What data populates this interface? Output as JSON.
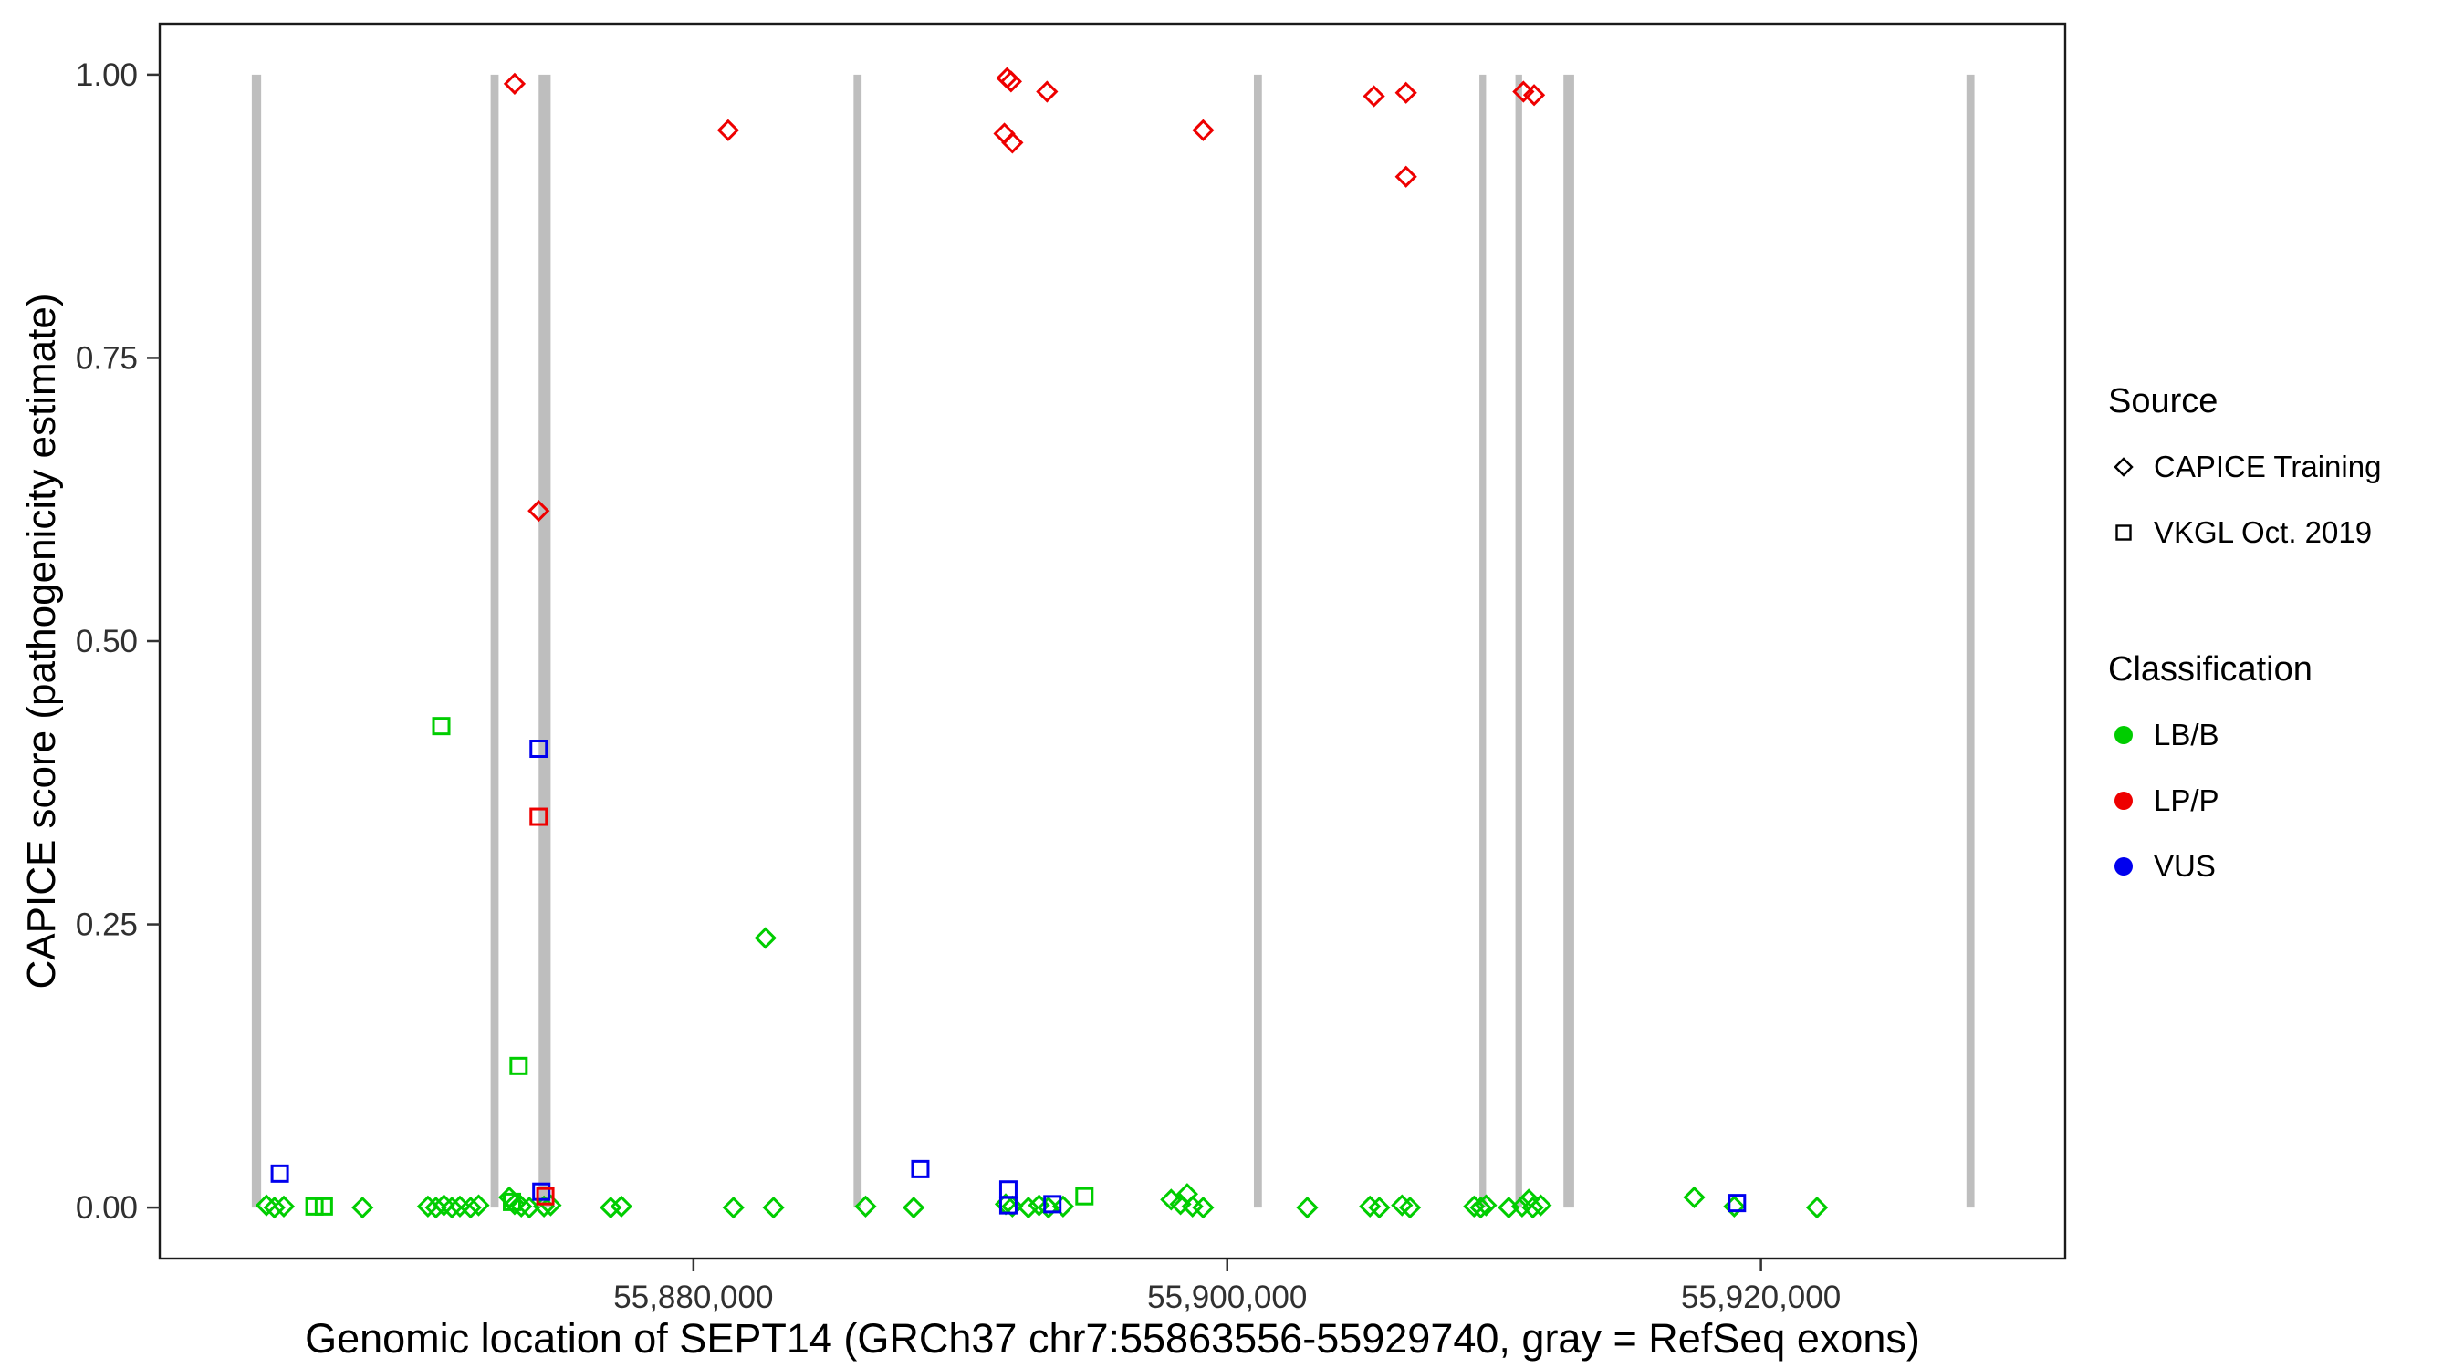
{
  "figure": {
    "background": "#FFFFFF"
  },
  "chart_data": {
    "type": "scatter",
    "title": "",
    "xlabel": "Genomic location of SEPT14 (GRCh37 chr7:55863556-55929740, gray = RefSeq exons)",
    "ylabel": "CAPICE score (pathogenicity estimate)",
    "xlim": [
      55860000,
      55931400
    ],
    "ylim": [
      -0.045,
      1.045
    ],
    "grid": false,
    "panel_border_color": "#1a1a1a",
    "tick_color": "#333333",
    "x_ticks": [
      {
        "value": 55880000,
        "label": "55,880,000"
      },
      {
        "value": 55900000,
        "label": "55,900,000"
      },
      {
        "value": 55920000,
        "label": "55,920,000"
      }
    ],
    "y_ticks": [
      {
        "value": 0.0,
        "label": "0.00"
      },
      {
        "value": 0.25,
        "label": "0.25"
      },
      {
        "value": 0.5,
        "label": "0.50"
      },
      {
        "value": 0.75,
        "label": "0.75"
      },
      {
        "value": 1.0,
        "label": "1.00"
      }
    ],
    "exon_color": "#BEBEBE",
    "exons": [
      {
        "start": 55863450,
        "end": 55863800
      },
      {
        "start": 55872400,
        "end": 55872700
      },
      {
        "start": 55874200,
        "end": 55874650
      },
      {
        "start": 55886000,
        "end": 55886300
      },
      {
        "start": 55901000,
        "end": 55901300
      },
      {
        "start": 55909450,
        "end": 55909700
      },
      {
        "start": 55910800,
        "end": 55911050
      },
      {
        "start": 55912600,
        "end": 55913000
      },
      {
        "start": 55927700,
        "end": 55928000
      }
    ],
    "series": [
      {
        "name": "CAPICE Training LB/B",
        "source": "CAPICE Training",
        "classification": "LB/B",
        "shape": "diamond",
        "color": "#00CD00",
        "points": [
          [
            55864000,
            0.002
          ],
          [
            55864300,
            0.0
          ],
          [
            55864650,
            0.001
          ],
          [
            55867600,
            0.0
          ],
          [
            55870050,
            0.001
          ],
          [
            55870350,
            0.0
          ],
          [
            55870650,
            0.002
          ],
          [
            55870950,
            0.0
          ],
          [
            55871250,
            0.001
          ],
          [
            55871650,
            0.0
          ],
          [
            55871950,
            0.002
          ],
          [
            55873100,
            0.009
          ],
          [
            55873300,
            0.003
          ],
          [
            55873550,
            0.001
          ],
          [
            55873850,
            0.0
          ],
          [
            55874400,
            0.001
          ],
          [
            55874650,
            0.002
          ],
          [
            55876900,
            0.0
          ],
          [
            55877300,
            0.001
          ],
          [
            55881500,
            0.0
          ],
          [
            55882700,
            0.238
          ],
          [
            55883000,
            0.0
          ],
          [
            55886450,
            0.001
          ],
          [
            55888250,
            0.0
          ],
          [
            55891700,
            0.003
          ],
          [
            55891950,
            0.001
          ],
          [
            55892550,
            0.0
          ],
          [
            55892950,
            0.002
          ],
          [
            55893300,
            0.0
          ],
          [
            55893850,
            0.001
          ],
          [
            55897900,
            0.007
          ],
          [
            55898250,
            0.003
          ],
          [
            55898500,
            0.012
          ],
          [
            55898700,
            0.001
          ],
          [
            55899100,
            0.0
          ],
          [
            55903000,
            0.0
          ],
          [
            55905350,
            0.001
          ],
          [
            55905700,
            0.0
          ],
          [
            55906550,
            0.002
          ],
          [
            55906850,
            0.0
          ],
          [
            55909250,
            0.001
          ],
          [
            55909500,
            0.0
          ],
          [
            55909700,
            0.002
          ],
          [
            55910550,
            0.0
          ],
          [
            55911050,
            0.001
          ],
          [
            55911300,
            0.007
          ],
          [
            55911450,
            0.0
          ],
          [
            55911750,
            0.002
          ],
          [
            55917500,
            0.009
          ],
          [
            55919000,
            0.001
          ],
          [
            55922100,
            0.0
          ]
        ]
      },
      {
        "name": "VKGL Oct. 2019 LB/B",
        "source": "VKGL Oct. 2019",
        "classification": "LB/B",
        "shape": "square",
        "color": "#00CD00",
        "points": [
          [
            55865800,
            0.001
          ],
          [
            55866150,
            0.001
          ],
          [
            55870550,
            0.425
          ],
          [
            55873200,
            0.005
          ],
          [
            55873450,
            0.125
          ],
          [
            55894650,
            0.01
          ]
        ]
      },
      {
        "name": "VKGL Oct. 2019 VUS",
        "source": "VKGL Oct. 2019",
        "classification": "VUS",
        "shape": "square",
        "color": "#0000EE",
        "points": [
          [
            55864500,
            0.03
          ],
          [
            55874200,
            0.405
          ],
          [
            55874300,
            0.014
          ],
          [
            55888500,
            0.034
          ],
          [
            55891800,
            0.016
          ],
          [
            55891800,
            0.002
          ],
          [
            55893450,
            0.003
          ],
          [
            55919100,
            0.004
          ]
        ]
      },
      {
        "name": "VKGL Oct. 2019 LP/P",
        "source": "VKGL Oct. 2019",
        "classification": "LP/P",
        "shape": "square",
        "color": "#EE0000",
        "points": [
          [
            55874200,
            0.345
          ],
          [
            55874450,
            0.01
          ]
        ]
      },
      {
        "name": "CAPICE Training LP/P",
        "source": "CAPICE Training",
        "classification": "LP/P",
        "shape": "diamond",
        "color": "#EE0000",
        "points": [
          [
            55873300,
            0.992
          ],
          [
            55874200,
            0.615
          ],
          [
            55881300,
            0.951
          ],
          [
            55891750,
            0.997
          ],
          [
            55891900,
            0.994
          ],
          [
            55891650,
            0.948
          ],
          [
            55891950,
            0.94
          ],
          [
            55893250,
            0.985
          ],
          [
            55899100,
            0.951
          ],
          [
            55905500,
            0.981
          ],
          [
            55906700,
            0.984
          ],
          [
            55906700,
            0.91
          ],
          [
            55911100,
            0.985
          ],
          [
            55911500,
            0.982
          ]
        ]
      }
    ],
    "legend": {
      "source_title": "Source",
      "source_items": [
        {
          "label": "CAPICE Training",
          "shape": "diamond"
        },
        {
          "label": "VKGL Oct. 2019",
          "shape": "square"
        }
      ],
      "classification_title": "Classification",
      "classification_items": [
        {
          "label": "LB/B",
          "color": "#00CD00"
        },
        {
          "label": "LP/P",
          "color": "#EE0000"
        },
        {
          "label": "VUS",
          "color": "#0000EE"
        }
      ],
      "legend_position": "right"
    }
  }
}
